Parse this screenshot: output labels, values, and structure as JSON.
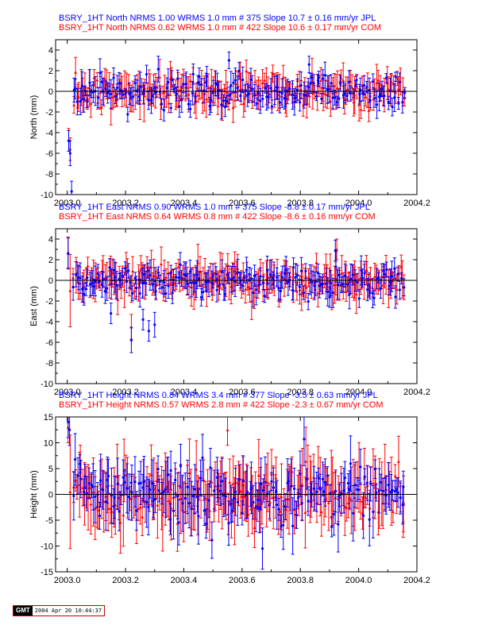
{
  "figure": {
    "stamp_logo": "GMT",
    "stamp_text": "2004 Apr 20 10:44:37",
    "colors": {
      "jpl": "#0000ff",
      "com": "#ff0000",
      "axis": "#000000",
      "zero": "#000000"
    }
  },
  "chart_data": [
    {
      "type": "scatter",
      "component": "North",
      "ylabel": "North (mm)",
      "xlim": [
        2002.96,
        2004.2
      ],
      "ylim": [
        -10,
        5
      ],
      "xticks": [
        2003.0,
        2003.2,
        2003.4,
        2003.6,
        2003.8,
        2004.0,
        2004.2
      ],
      "xtick_labels": [
        "2003.0",
        "2003.2",
        "2003.4",
        "2003.6",
        "2003.8",
        "2004.0",
        "2004.2"
      ],
      "yticks": [
        -10,
        -8,
        -6,
        -4,
        -2,
        0,
        2,
        4
      ],
      "series": [
        {
          "name": "JPL",
          "color": "#0000ff",
          "label": "BSRY_1HT North NRMS 1.00 WRMS  1.0 mm # 375 Slope   10.7 ±  0.16 mm/yr JPL",
          "n": 375,
          "nrms": 1.0,
          "wrms_mm": 1.0,
          "slope_mm_yr": 10.7,
          "slope_sigma": 0.16,
          "noise_sd": 0.9,
          "err_mean": 0.9,
          "err_spread": 0.5,
          "points": [
            {
              "x": 2003.005,
              "y": -4.8,
              "err": 1.0
            },
            {
              "x": 2003.01,
              "y": -6.0,
              "err": 1.2
            },
            {
              "x": 2003.015,
              "y": -9.7,
              "err": 1.0
            },
            {
              "x": 2003.555,
              "y": 3.0,
              "err": 0.8
            },
            {
              "x": 2003.83,
              "y": 2.6,
              "err": 0.8
            }
          ]
        },
        {
          "name": "COM",
          "color": "#ff0000",
          "label": "BSRY_1HT North NRMS 0.62 WRMS  1.0 mm # 422 Slope   10.6 ±  0.17 mm/yr COM",
          "n": 422,
          "nrms": 0.62,
          "wrms_mm": 1.0,
          "slope_mm_yr": 10.6,
          "slope_sigma": 0.17,
          "noise_sd": 0.9,
          "err_mean": 1.2,
          "err_spread": 0.6,
          "points": [
            {
              "x": 2003.005,
              "y": -4.7,
              "err": 1.1
            },
            {
              "x": 2003.01,
              "y": -5.6,
              "err": 1.1
            }
          ]
        }
      ]
    },
    {
      "type": "scatter",
      "component": "East",
      "ylabel": "East (mm)",
      "xlim": [
        2002.96,
        2004.2
      ],
      "ylim": [
        -10,
        5
      ],
      "xticks": [
        2003.0,
        2003.2,
        2003.4,
        2003.6,
        2003.8,
        2004.0,
        2004.2
      ],
      "xtick_labels": [
        "2003.0",
        "2003.2",
        "2003.4",
        "2003.6",
        "2003.8",
        "2004.0",
        "2004.2"
      ],
      "yticks": [
        -10,
        -8,
        -6,
        -4,
        -2,
        0,
        2,
        4
      ],
      "series": [
        {
          "name": "JPL",
          "color": "#0000ff",
          "label": "BSRY_1HT East NRMS 0.90 WRMS  1.0 mm # 375 Slope   -8.8 ±  0.17 mm/yr JPL",
          "n": 375,
          "nrms": 0.9,
          "wrms_mm": 1.0,
          "slope_mm_yr": -8.8,
          "slope_sigma": 0.17,
          "noise_sd": 0.9,
          "err_mean": 1.0,
          "err_spread": 0.5,
          "points": [
            {
              "x": 2003.003,
              "y": 2.6,
              "err": 1.5
            },
            {
              "x": 2003.15,
              "y": -3.2,
              "err": 1.0
            },
            {
              "x": 2003.22,
              "y": -5.8,
              "err": 1.2
            },
            {
              "x": 2003.26,
              "y": -3.8,
              "err": 1.0
            },
            {
              "x": 2003.28,
              "y": -4.9,
              "err": 1.0
            },
            {
              "x": 2003.3,
              "y": -4.3,
              "err": 1.2
            },
            {
              "x": 2003.92,
              "y": 2.9,
              "err": 1.0
            }
          ]
        },
        {
          "name": "COM",
          "color": "#ff0000",
          "label": "BSRY_1HT East NRMS 0.64 WRMS  0.8 mm # 422 Slope   -8.6 ±  0.16 mm/yr COM",
          "n": 422,
          "nrms": 0.64,
          "wrms_mm": 0.8,
          "slope_mm_yr": -8.6,
          "slope_sigma": 0.16,
          "noise_sd": 0.8,
          "err_mean": 1.3,
          "err_spread": 0.6,
          "points": [
            {
              "x": 2003.003,
              "y": 2.7,
              "err": 1.5
            },
            {
              "x": 2003.01,
              "y": -1.0,
              "err": 3.5
            },
            {
              "x": 2003.22,
              "y": -4.5,
              "err": 1.2
            },
            {
              "x": 2003.925,
              "y": 3.0,
              "err": 1.0
            }
          ]
        }
      ]
    },
    {
      "type": "scatter",
      "component": "Height",
      "ylabel": "Height (mm)",
      "xlim": [
        2002.96,
        2004.2
      ],
      "ylim": [
        -15,
        15
      ],
      "xticks": [
        2003.0,
        2003.2,
        2003.4,
        2003.6,
        2003.8,
        2004.0,
        2004.2
      ],
      "xtick_labels": [
        "2003.0",
        "2003.2",
        "2003.4",
        "2003.6",
        "2003.8",
        "2004.0",
        "2004.2"
      ],
      "yticks": [
        -15,
        -10,
        -5,
        0,
        5,
        10,
        15
      ],
      "series": [
        {
          "name": "JPL",
          "color": "#0000ff",
          "label": "BSRY_1HT Height NRMS 0.84 WRMS  3.4 mm # 377 Slope   -3.5 ±  0.63 mm/yr JPL",
          "n": 377,
          "nrms": 0.84,
          "wrms_mm": 3.4,
          "slope_mm_yr": -3.5,
          "slope_sigma": 0.63,
          "noise_sd": 3.4,
          "err_mean": 3.5,
          "err_spread": 2.0,
          "points": [
            {
              "x": 2003.003,
              "y": 14.0,
              "err": 3.0
            },
            {
              "x": 2003.008,
              "y": 12.5,
              "err": 3.0
            },
            {
              "x": 2003.67,
              "y": -10.5,
              "err": 4.0
            }
          ]
        },
        {
          "name": "COM",
          "color": "#ff0000",
          "label": "BSRY_1HT Height NRMS 0.57 WRMS  2.8 mm # 422 Slope   -2.3 ±  0.67 mm/yr COM",
          "n": 422,
          "nrms": 0.57,
          "wrms_mm": 2.8,
          "slope_mm_yr": -2.3,
          "slope_sigma": 0.67,
          "noise_sd": 2.8,
          "err_mean": 4.5,
          "err_spread": 2.5,
          "points": [
            {
              "x": 2003.003,
              "y": 13.0,
              "err": 3.0
            },
            {
              "x": 2003.01,
              "y": 0.5,
              "err": 11.0
            },
            {
              "x": 2003.55,
              "y": 12.5,
              "err": 3.0
            }
          ]
        }
      ]
    }
  ]
}
